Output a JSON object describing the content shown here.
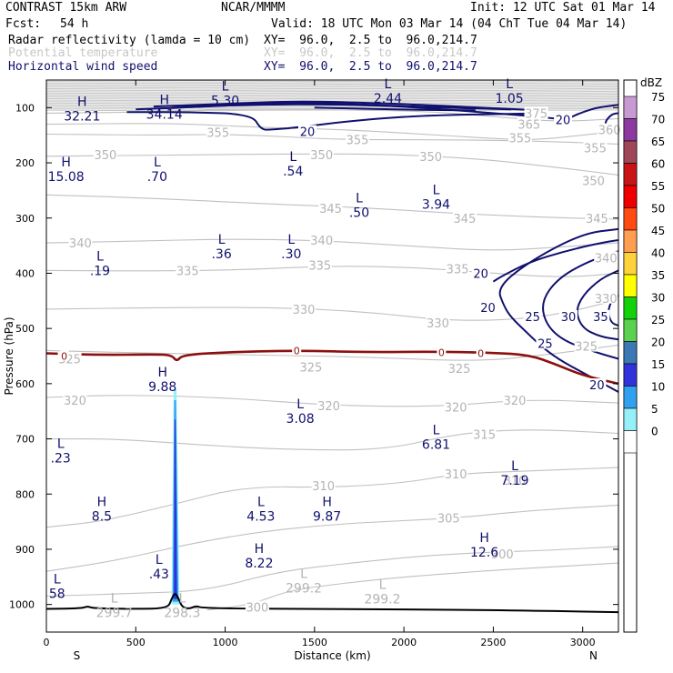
{
  "header": {
    "model": "CONTRAST 15km ARW",
    "org": "NCAR/MMMM",
    "init": "Init: 12 UTC Sat 01 Mar 14",
    "fcst_label": "Fcst:",
    "fcst_value": "54 h",
    "valid": "Valid: 18 UTC Mon 03 Mar 14 (04 ChT Tue 04 Mar 14)",
    "fields": [
      {
        "name": "Radar reflectivity (lamda = 10 cm)",
        "xy": "XY=  96.0,  2.5 to  96.0,214.7",
        "color": "#000000"
      },
      {
        "name": "Potential temperature",
        "xy": "XY=  96.0,  2.5 to  96.0,214.7",
        "color": "#c8c8c8"
      },
      {
        "name": "Horizontal wind speed",
        "xy": "XY=  96.0,  2.5 to  96.0,214.7",
        "color": "#10106e"
      }
    ]
  },
  "chart_data": {
    "type": "cross-section contour",
    "xlabel": "Distance (km)",
    "ylabel": "Pressure (hPa)",
    "xlim": [
      0,
      3200
    ],
    "ylim": [
      1050,
      50
    ],
    "x_ticks": [
      0,
      500,
      1000,
      1500,
      2000,
      2500,
      3000
    ],
    "y_ticks": [
      100,
      200,
      300,
      400,
      500,
      600,
      700,
      800,
      900,
      1000
    ],
    "x_end_labels": {
      "left": "S",
      "right": "N"
    },
    "colorbar": {
      "unit": "dBZ",
      "levels": [
        {
          "value": 75,
          "color": "#c89ad4"
        },
        {
          "value": 70,
          "color": "#8c3aa0"
        },
        {
          "value": 65,
          "color": "#a04858"
        },
        {
          "value": 60,
          "color": "#c81414"
        },
        {
          "value": 55,
          "color": "#ee0000"
        },
        {
          "value": 50,
          "color": "#ff4a14"
        },
        {
          "value": 45,
          "color": "#ff9e50"
        },
        {
          "value": 40,
          "color": "#ffd23c"
        },
        {
          "value": 35,
          "color": "#ffff00"
        },
        {
          "value": 30,
          "color": "#14d20a"
        },
        {
          "value": 25,
          "color": "#5ad250"
        },
        {
          "value": 20,
          "color": "#3c78b4"
        },
        {
          "value": 15,
          "color": "#3232dc"
        },
        {
          "value": 10,
          "color": "#32a0f0"
        },
        {
          "value": 5,
          "color": "#96f0fa"
        },
        {
          "value": 0,
          "color": "#ffffff"
        }
      ]
    },
    "theta_labels": [
      {
        "x": 2740,
        "p": 110,
        "text": "375"
      },
      {
        "x": 2700,
        "p": 130,
        "text": "365"
      },
      {
        "x": 3150,
        "p": 140,
        "text": "360"
      },
      {
        "x": 960,
        "p": 145,
        "text": "355"
      },
      {
        "x": 1740,
        "p": 158,
        "text": "355"
      },
      {
        "x": 2650,
        "p": 155,
        "text": "355"
      },
      {
        "x": 3070,
        "p": 173,
        "text": "355"
      },
      {
        "x": 330,
        "p": 185,
        "text": "350"
      },
      {
        "x": 1540,
        "p": 185,
        "text": "350"
      },
      {
        "x": 2150,
        "p": 188,
        "text": "350"
      },
      {
        "x": 3060,
        "p": 232,
        "text": "350"
      },
      {
        "x": 1590,
        "p": 282,
        "text": "345"
      },
      {
        "x": 2340,
        "p": 300,
        "text": "345"
      },
      {
        "x": 3080,
        "p": 300,
        "text": "345"
      },
      {
        "x": 190,
        "p": 345,
        "text": "340"
      },
      {
        "x": 1540,
        "p": 340,
        "text": "340"
      },
      {
        "x": 3130,
        "p": 372,
        "text": "340"
      },
      {
        "x": 790,
        "p": 395,
        "text": "335"
      },
      {
        "x": 1530,
        "p": 385,
        "text": "335"
      },
      {
        "x": 2300,
        "p": 392,
        "text": "335"
      },
      {
        "x": 1440,
        "p": 465,
        "text": "330"
      },
      {
        "x": 2190,
        "p": 490,
        "text": "330"
      },
      {
        "x": 3130,
        "p": 445,
        "text": "330"
      },
      {
        "x": 130,
        "p": 555,
        "text": "325"
      },
      {
        "x": 1480,
        "p": 570,
        "text": "325"
      },
      {
        "x": 2310,
        "p": 572,
        "text": "325"
      },
      {
        "x": 3020,
        "p": 532,
        "text": "325"
      },
      {
        "x": 160,
        "p": 630,
        "text": "320"
      },
      {
        "x": 1580,
        "p": 640,
        "text": "320"
      },
      {
        "x": 2290,
        "p": 642,
        "text": "320"
      },
      {
        "x": 2620,
        "p": 630,
        "text": "320"
      },
      {
        "x": 2450,
        "p": 692,
        "text": "315"
      },
      {
        "x": 2620,
        "p": 775,
        "text": "310"
      },
      {
        "x": 1550,
        "p": 785,
        "text": "310"
      },
      {
        "x": 2290,
        "p": 763,
        "text": "310"
      },
      {
        "x": 2250,
        "p": 843,
        "text": "305"
      },
      {
        "x": 2550,
        "p": 908,
        "text": "300"
      },
      {
        "x": 1180,
        "p": 1005,
        "text": "300"
      },
      {
        "x": 1460,
        "p": 1063,
        "text": ""
      }
    ],
    "wind_labels": [
      {
        "x": 1460,
        "p": 143,
        "text": "20"
      },
      {
        "x": 2890,
        "p": 122,
        "text": "20"
      },
      {
        "x": 2430,
        "p": 400,
        "text": "20"
      },
      {
        "x": 2470,
        "p": 462,
        "text": "20"
      },
      {
        "x": 2720,
        "p": 478,
        "text": "25"
      },
      {
        "x": 2920,
        "p": 478,
        "text": "30"
      },
      {
        "x": 3100,
        "p": 478,
        "text": "35"
      },
      {
        "x": 2790,
        "p": 527,
        "text": "25"
      },
      {
        "x": 3080,
        "p": 602,
        "text": "20"
      }
    ],
    "zero_labels": [
      {
        "x": 100,
        "p": 550,
        "text": "0"
      },
      {
        "x": 1400,
        "p": 540,
        "text": "0"
      },
      {
        "x": 2210,
        "p": 543,
        "text": "0"
      },
      {
        "x": 2430,
        "p": 545,
        "text": "0"
      }
    ],
    "extrema": [
      {
        "x": 200,
        "p": 100,
        "kind": "H",
        "value": "32.21"
      },
      {
        "x": 660,
        "p": 97,
        "kind": "H",
        "value": "34.14"
      },
      {
        "x": 1000,
        "p": 72,
        "kind": "L",
        "value": "5.30"
      },
      {
        "x": 1910,
        "p": 68,
        "kind": "L",
        "value": "2.44"
      },
      {
        "x": 2590,
        "p": 68,
        "kind": "L",
        "value": "1.05"
      },
      {
        "x": 110,
        "p": 210,
        "kind": "H",
        "value": "15.08"
      },
      {
        "x": 620,
        "p": 210,
        "kind": "L",
        "value": ".70"
      },
      {
        "x": 1380,
        "p": 200,
        "kind": "L",
        "value": ".54"
      },
      {
        "x": 1750,
        "p": 275,
        "kind": "L",
        "value": ".50"
      },
      {
        "x": 2180,
        "p": 260,
        "kind": "L",
        "value": "3.94"
      },
      {
        "x": 980,
        "p": 350,
        "kind": "L",
        "value": ".36"
      },
      {
        "x": 1370,
        "p": 350,
        "kind": "L",
        "value": ".30"
      },
      {
        "x": 300,
        "p": 380,
        "kind": "L",
        "value": ".19"
      },
      {
        "x": 650,
        "p": 590,
        "kind": "H",
        "value": "9.88"
      },
      {
        "x": 1420,
        "p": 648,
        "kind": "L",
        "value": "3.08"
      },
      {
        "x": 2180,
        "p": 695,
        "kind": "L",
        "value": "6.81"
      },
      {
        "x": 80,
        "p": 720,
        "kind": "L",
        "value": ".23"
      },
      {
        "x": 2620,
        "p": 760,
        "kind": "L",
        "value": "7.19"
      },
      {
        "x": 310,
        "p": 825,
        "kind": "H",
        "value": "8.5"
      },
      {
        "x": 1200,
        "p": 825,
        "kind": "L",
        "value": "4.53"
      },
      {
        "x": 1570,
        "p": 825,
        "kind": "H",
        "value": "9.87"
      },
      {
        "x": 2450,
        "p": 890,
        "kind": "H",
        "value": "12.6"
      },
      {
        "x": 1190,
        "p": 910,
        "kind": "H",
        "value": "8.22"
      },
      {
        "x": 630,
        "p": 930,
        "kind": "L",
        "value": ".43"
      },
      {
        "x": 60,
        "p": 965,
        "kind": "L",
        "value": "58"
      }
    ],
    "grey_extrema": [
      {
        "x": 380,
        "p": 1000,
        "kind": "L",
        "value": "299.7"
      },
      {
        "x": 760,
        "p": 1000,
        "kind": "L",
        "value": "298.3"
      },
      {
        "x": 1440,
        "p": 955,
        "kind": "L",
        "value": "299.2"
      },
      {
        "x": 1880,
        "p": 975,
        "kind": "L",
        "value": "299.2"
      }
    ]
  }
}
